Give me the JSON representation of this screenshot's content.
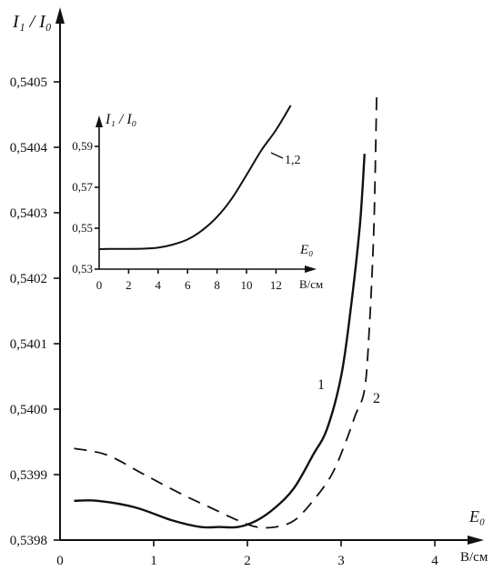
{
  "chart_data": [
    {
      "type": "line",
      "ylabel": "I₁ / I₀",
      "xlabel": "E₀",
      "xunit": "В/см",
      "xlim": [
        0,
        4.5
      ],
      "ylim": [
        0.5398,
        0.54055
      ],
      "xticks": [
        "0",
        "1",
        "2",
        "3",
        "4"
      ],
      "yticks": [
        "0,5398",
        "0,5399",
        "0,5400",
        "0,5401",
        "0,5402",
        "0,5403",
        "0,5404",
        "0,5405"
      ],
      "series": [
        {
          "name": "1",
          "points": [
            [
              0.15,
              0.53986
            ],
            [
              0.4,
              0.53986
            ],
            [
              0.8,
              0.53985
            ],
            [
              1.2,
              0.53983
            ],
            [
              1.5,
              0.53982
            ],
            [
              1.7,
              0.53982
            ],
            [
              1.9,
              0.53982
            ],
            [
              2.1,
              0.53983
            ],
            [
              2.3,
              0.53985
            ],
            [
              2.5,
              0.53988
            ],
            [
              2.7,
              0.53993
            ],
            [
              2.85,
              0.53997
            ],
            [
              3.0,
              0.54005
            ],
            [
              3.1,
              0.54015
            ],
            [
              3.2,
              0.54028
            ],
            [
              3.25,
              0.54039
            ]
          ]
        },
        {
          "name": "2",
          "points": [
            [
              0.15,
              0.53994
            ],
            [
              0.5,
              0.53993
            ],
            [
              0.9,
              0.5399
            ],
            [
              1.3,
              0.53987
            ],
            [
              1.6,
              0.53985
            ],
            [
              1.9,
              0.53983
            ],
            [
              2.1,
              0.53982
            ],
            [
              2.3,
              0.53982
            ],
            [
              2.5,
              0.53983
            ],
            [
              2.7,
              0.53986
            ],
            [
              2.9,
              0.5399
            ],
            [
              3.05,
              0.53995
            ],
            [
              3.15,
              0.53999
            ],
            [
              3.25,
              0.54003
            ],
            [
              3.3,
              0.54012
            ],
            [
              3.35,
              0.54028
            ],
            [
              3.38,
              0.54048
            ]
          ]
        }
      ]
    },
    {
      "type": "line",
      "ylabel": "I₁ / I₀",
      "xlabel": "E₀",
      "xunit": "В/см",
      "xlim": [
        0,
        13
      ],
      "ylim": [
        0.53,
        0.61
      ],
      "xticks": [
        "0",
        "2",
        "4",
        "6",
        "8",
        "10",
        "12"
      ],
      "yticks": [
        "0,53",
        "0,55",
        "0,57",
        "0,59"
      ],
      "series": [
        {
          "name": "1,2",
          "points": [
            [
              0,
              0.5398
            ],
            [
              1,
              0.5399
            ],
            [
              2,
              0.5399
            ],
            [
              3,
              0.54
            ],
            [
              4,
              0.5405
            ],
            [
              5,
              0.542
            ],
            [
              6,
              0.5445
            ],
            [
              7,
              0.549
            ],
            [
              8,
              0.5555
            ],
            [
              9,
              0.5645
            ],
            [
              10,
              0.576
            ],
            [
              11,
              0.588
            ],
            [
              12,
              0.598
            ],
            [
              13,
              0.61
            ]
          ]
        }
      ]
    }
  ]
}
